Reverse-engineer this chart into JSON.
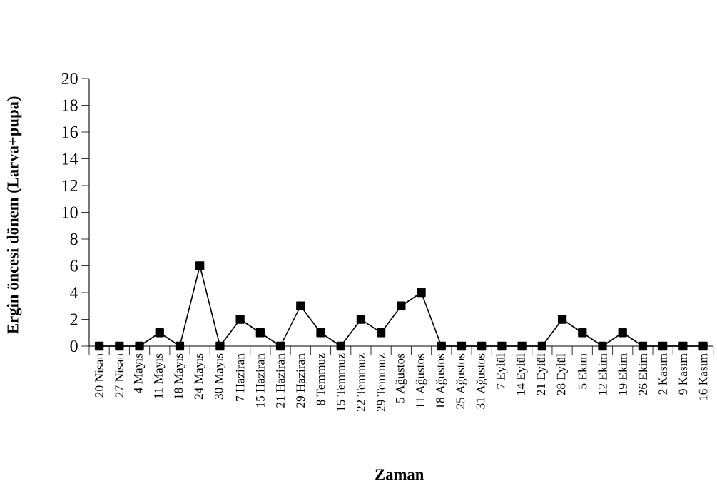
{
  "chart_data": {
    "type": "line",
    "xlabel": "Zaman",
    "ylabel": "Ergin öncesi dönem (Larva+pupa)",
    "categories": [
      "20 Nisan",
      "27 Nisan",
      "4 Mayıs",
      "11 Mayıs",
      "18 Mayıs",
      "24 Mayıs",
      "30 Mayıs",
      "7 Haziran",
      "15 Haziran",
      "21 Haziran",
      "29 Haziran",
      "8 Temmuz",
      "15 Temmuz",
      "22 Temmuz",
      "29 Temmuz",
      "5 Ağustos",
      "11 Ağustos",
      "18 Ağustos",
      "25 Ağustos",
      "31 Ağustos",
      "7 Eylül",
      "14 Eylül",
      "21 Eylül",
      "28 Eylül",
      "5 Ekim",
      "12 Ekim",
      "19 Ekim",
      "26 Ekim",
      "2 Kasım",
      "9 Kasım",
      "16 Kasım"
    ],
    "values": [
      0,
      0,
      0,
      1,
      0,
      6,
      0,
      2,
      1,
      0,
      3,
      1,
      0,
      2,
      1,
      3,
      4,
      0,
      0,
      0,
      0,
      0,
      0,
      2,
      1,
      0,
      1,
      0,
      0,
      0,
      0
    ],
    "color": "#000000",
    "marker": "square",
    "line_style": "solid",
    "ylim": [
      0,
      20
    ],
    "yticks": [
      0,
      2,
      4,
      6,
      8,
      10,
      12,
      14,
      16,
      18,
      20
    ]
  }
}
